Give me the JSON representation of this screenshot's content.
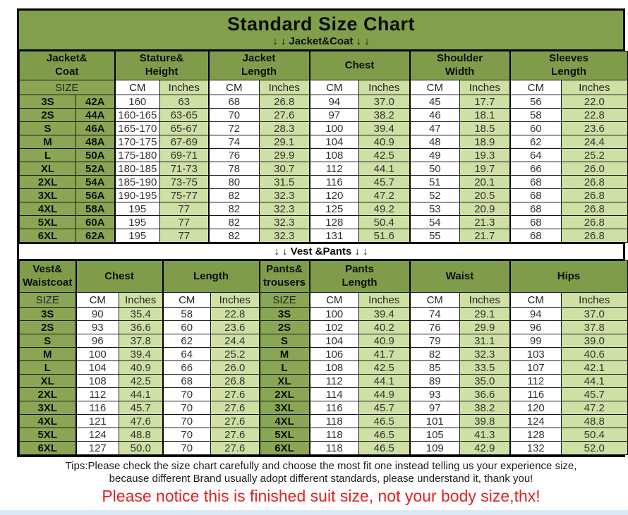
{
  "title": "Standard Size Chart",
  "top_banner_arrows": "↓ ↓  Jacket&Coat ↓ ↓",
  "separator_label": "↓ ↓  Vest &Pants ↓ ↓",
  "tips": {
    "line1": "Tips:Please check the size chart carefully and choose the most fit one instead telling us your experience size,",
    "line2": "because different Brand usually adopt different standards, please understand it, thank you!",
    "notice": "Please notice this is finished suit size, not your body size,thx!"
  },
  "colors": {
    "header_green": "#7e9c4a",
    "size_col_green": "#8aa654",
    "light_green": "#cfe0a5",
    "title_band_green": "#80a04c",
    "notice_red": "#e02222",
    "border_black": "#161616"
  },
  "chart_data": [
    {
      "type": "table",
      "title": "Jacket&Coat",
      "groups": [
        {
          "lines": [
            "Jacket&",
            "Coat"
          ],
          "span": 2
        },
        {
          "lines": [
            "Stature&",
            "Height"
          ],
          "span": 2
        },
        {
          "lines": [
            "Jacket",
            "Length"
          ],
          "span": 2
        },
        {
          "lines": [
            "Chest"
          ],
          "span": 2
        },
        {
          "lines": [
            "Shoulder",
            "Width"
          ],
          "span": 2
        },
        {
          "lines": [
            "Sleeves",
            "Length"
          ],
          "span": 2
        }
      ],
      "subheader": [
        {
          "label": "SIZE",
          "span": 2,
          "bg": "s"
        },
        {
          "label": "CM",
          "span": 1,
          "bg": "w"
        },
        {
          "label": "Inches",
          "span": 1,
          "bg": "l"
        },
        {
          "label": "CM",
          "span": 1,
          "bg": "w"
        },
        {
          "label": "Inches",
          "span": 1,
          "bg": "l"
        },
        {
          "label": "CM",
          "span": 1,
          "bg": "w"
        },
        {
          "label": "Inches",
          "span": 1,
          "bg": "l"
        },
        {
          "label": "CM",
          "span": 1,
          "bg": "w"
        },
        {
          "label": "Inches",
          "span": 1,
          "bg": "l"
        },
        {
          "label": "CM",
          "span": 1,
          "bg": "w"
        },
        {
          "label": "Inches",
          "span": 1,
          "bg": "l"
        }
      ],
      "bold_cols": [
        0,
        1
      ],
      "col_bg": [
        "s",
        "s",
        "w",
        "l",
        "w",
        "l",
        "w",
        "l",
        "w",
        "l",
        "w",
        "l"
      ],
      "rows": [
        [
          "3S",
          "42A",
          "160",
          "63",
          "68",
          "26.8",
          "94",
          "37.0",
          "45",
          "17.7",
          "56",
          "22.0"
        ],
        [
          "2S",
          "44A",
          "160-165",
          "63-65",
          "70",
          "27.6",
          "97",
          "38.2",
          "46",
          "18.1",
          "58",
          "22.8"
        ],
        [
          "S",
          "46A",
          "165-170",
          "65-67",
          "72",
          "28.3",
          "100",
          "39.4",
          "47",
          "18.5",
          "60",
          "23.6"
        ],
        [
          "M",
          "48A",
          "170-175",
          "67-69",
          "74",
          "29.1",
          "104",
          "40.9",
          "48",
          "18.9",
          "62",
          "24.4"
        ],
        [
          "L",
          "50A",
          "175-180",
          "69-71",
          "76",
          "29.9",
          "108",
          "42.5",
          "49",
          "19.3",
          "64",
          "25.2"
        ],
        [
          "XL",
          "52A",
          "180-185",
          "71-73",
          "78",
          "30.7",
          "112",
          "44.1",
          "50",
          "19.7",
          "66",
          "26.0"
        ],
        [
          "2XL",
          "54A",
          "185-190",
          "73-75",
          "80",
          "31.5",
          "116",
          "45.7",
          "51",
          "20.1",
          "68",
          "26.8"
        ],
        [
          "3XL",
          "56A",
          "190-195",
          "75-77",
          "82",
          "32.3",
          "120",
          "47.2",
          "52",
          "20.5",
          "68",
          "26.8"
        ],
        [
          "4XL",
          "58A",
          "195",
          "77",
          "82",
          "32.3",
          "125",
          "49.2",
          "53",
          "20.9",
          "68",
          "26.8"
        ],
        [
          "5XL",
          "60A",
          "195",
          "77",
          "82",
          "32.3",
          "128",
          "50.4",
          "54",
          "21.3",
          "68",
          "26.8"
        ],
        [
          "6XL",
          "62A",
          "195",
          "77",
          "82",
          "32.3",
          "131",
          "51.6",
          "55",
          "21.7",
          "68",
          "26.8"
        ]
      ]
    },
    {
      "type": "table",
      "title": "Vest &Pants",
      "groups": [
        {
          "lines": [
            "Vest&",
            "Waistcoat"
          ],
          "span": 1
        },
        {
          "lines": [
            "Chest"
          ],
          "span": 2
        },
        {
          "lines": [
            "Length"
          ],
          "span": 2
        },
        {
          "lines": [
            "Pants&",
            "trousers"
          ],
          "span": 1
        },
        {
          "lines": [
            "Pants",
            "Length"
          ],
          "span": 2
        },
        {
          "lines": [
            "Waist"
          ],
          "span": 2
        },
        {
          "lines": [
            "Hips"
          ],
          "span": 2
        }
      ],
      "subheader": [
        {
          "label": "SIZE",
          "span": 1,
          "bg": "s"
        },
        {
          "label": "CM",
          "span": 1,
          "bg": "w"
        },
        {
          "label": "Inches",
          "span": 1,
          "bg": "l"
        },
        {
          "label": "CM",
          "span": 1,
          "bg": "w"
        },
        {
          "label": "Inches",
          "span": 1,
          "bg": "l"
        },
        {
          "label": "SIZE",
          "span": 1,
          "bg": "s"
        },
        {
          "label": "CM",
          "span": 1,
          "bg": "w"
        },
        {
          "label": "Inches",
          "span": 1,
          "bg": "l"
        },
        {
          "label": "CM",
          "span": 1,
          "bg": "w"
        },
        {
          "label": "Inches",
          "span": 1,
          "bg": "l"
        },
        {
          "label": "CM",
          "span": 1,
          "bg": "w"
        },
        {
          "label": "Inches",
          "span": 1,
          "bg": "l"
        }
      ],
      "bold_cols": [
        0,
        5
      ],
      "col_bg": [
        "s",
        "w",
        "l",
        "w",
        "l",
        "s",
        "w",
        "l",
        "w",
        "l",
        "w",
        "l"
      ],
      "rows": [
        [
          "3S",
          "90",
          "35.4",
          "58",
          "22.8",
          "3S",
          "100",
          "39.4",
          "74",
          "29.1",
          "94",
          "37.0"
        ],
        [
          "2S",
          "93",
          "36.6",
          "60",
          "23.6",
          "2S",
          "102",
          "40.2",
          "76",
          "29.9",
          "96",
          "37.8"
        ],
        [
          "S",
          "96",
          "37.8",
          "62",
          "24.4",
          "S",
          "104",
          "40.9",
          "79",
          "31.1",
          "99",
          "39.0"
        ],
        [
          "M",
          "100",
          "39.4",
          "64",
          "25.2",
          "M",
          "106",
          "41.7",
          "82",
          "32.3",
          "103",
          "40.6"
        ],
        [
          "L",
          "104",
          "40.9",
          "66",
          "26.0",
          "L",
          "108",
          "42.5",
          "85",
          "33.5",
          "107",
          "42.1"
        ],
        [
          "XL",
          "108",
          "42.5",
          "68",
          "26.8",
          "XL",
          "112",
          "44.1",
          "89",
          "35.0",
          "112",
          "44.1"
        ],
        [
          "2XL",
          "112",
          "44.1",
          "70",
          "27.6",
          "2XL",
          "114",
          "44.9",
          "93",
          "36.6",
          "116",
          "45.7"
        ],
        [
          "3XL",
          "116",
          "45.7",
          "70",
          "27.6",
          "3XL",
          "116",
          "45.7",
          "97",
          "38.2",
          "120",
          "47.2"
        ],
        [
          "4XL",
          "121",
          "47.6",
          "70",
          "27.6",
          "4XL",
          "118",
          "46.5",
          "101",
          "39.8",
          "124",
          "48.8"
        ],
        [
          "5XL",
          "124",
          "48.8",
          "70",
          "27.6",
          "5XL",
          "118",
          "46.5",
          "105",
          "41.3",
          "128",
          "50.4"
        ],
        [
          "6XL",
          "127",
          "50.0",
          "70",
          "27.6",
          "6XL",
          "118",
          "46.5",
          "109",
          "42.9",
          "132",
          "52.0"
        ]
      ]
    }
  ]
}
